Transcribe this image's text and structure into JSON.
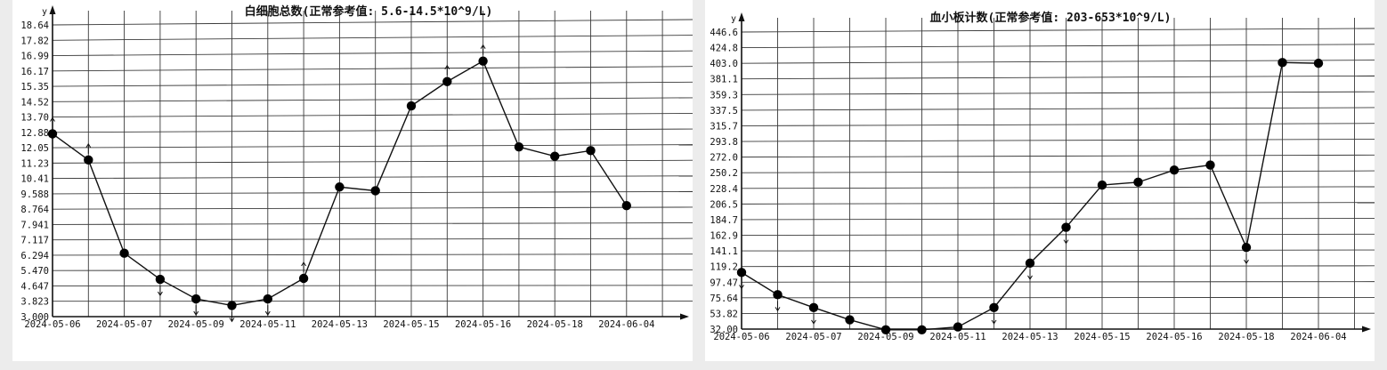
{
  "chart_data": [
    {
      "type": "line",
      "title": "白细胞总数(正常参考值: 5.6-14.5*10^9/L)",
      "ylabel": "y",
      "xlabel": "",
      "ylim": [
        3.0,
        18.64
      ],
      "y_ticks": [
        "18.64",
        "17.82",
        "16.99",
        "16.17",
        "15.35",
        "14.52",
        "13.70",
        "12.88",
        "12.05",
        "11.23",
        "10.41",
        "9.588",
        "8.764",
        "7.941",
        "7.117",
        "6.294",
        "5.470",
        "4.647",
        "3.823",
        "3.000"
      ],
      "x_tick_labels": [
        "2024-05-06",
        "2024-05-07",
        "2024-05-09",
        "2024-05-11",
        "2024-05-13",
        "2024-05-15",
        "2024-05-16",
        "2024-05-18",
        "2024-06-04"
      ],
      "series": [
        {
          "values": [
            12.8,
            11.4,
            6.4,
            5.0,
            3.95,
            3.6,
            3.95,
            5.05,
            9.95,
            9.75,
            14.3,
            15.6,
            16.7,
            12.1,
            11.6,
            11.9,
            8.95
          ]
        }
      ],
      "markers": [
        "up",
        "up",
        "none",
        "down",
        "down",
        "down",
        "down",
        "up",
        "none",
        "none",
        "none",
        "up",
        "up",
        "none",
        "none",
        "none",
        "none"
      ],
      "grid": true
    },
    {
      "type": "line",
      "title": "血小板计数(正常参考值: 203-653*10^9/L)",
      "ylabel": "y",
      "xlabel": "",
      "ylim": [
        32.0,
        446.6
      ],
      "y_ticks": [
        "446.6",
        "424.8",
        "403.0",
        "381.1",
        "359.3",
        "337.5",
        "315.7",
        "293.8",
        "272.0",
        "250.2",
        "228.4",
        "206.5",
        "184.7",
        "162.9",
        "141.1",
        "119.2",
        "97.47",
        "75.64",
        "53.82",
        "32.00"
      ],
      "x_tick_labels": [
        "2024-05-06",
        "2024-05-07",
        "2024-05-09",
        "2024-05-11",
        "2024-05-13",
        "2024-05-15",
        "2024-05-16",
        "2024-05-18",
        "2024-06-04"
      ],
      "series": [
        {
          "values": [
            111,
            80,
            62,
            45,
            31,
            31,
            35,
            62,
            124,
            174,
            233,
            237,
            254,
            261,
            146,
            404,
            403
          ]
        }
      ],
      "markers": [
        "down",
        "down",
        "down",
        "none",
        "none",
        "none",
        "none",
        "down",
        "down",
        "down",
        "none",
        "none",
        "none",
        "none",
        "down",
        "none",
        "none"
      ],
      "grid": true
    }
  ]
}
